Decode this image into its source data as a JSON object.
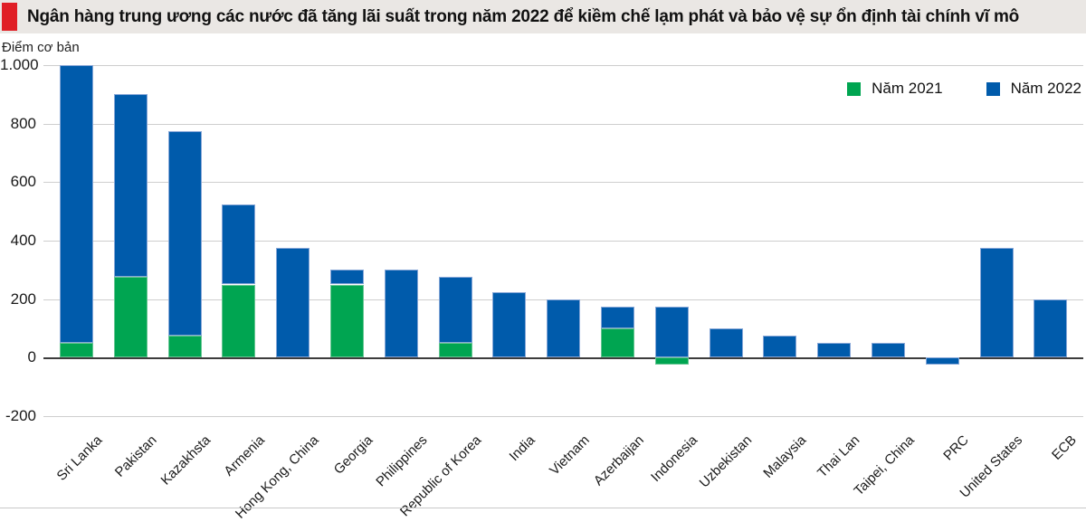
{
  "title": "Ngân hàng trung ương các nước đã tăng lãi suất trong năm 2022 để kiềm chế lạm phát và bảo vệ sự ổn định tài chính vĩ mô",
  "y_axis_title": "Điểm cơ bản",
  "legend": {
    "item1": "Năm 2021",
    "item2": "Năm 2022"
  },
  "colors": {
    "green_2021": "#00a551",
    "blue_2022": "#005bab",
    "title_accent_red": "#e01e25",
    "title_band_bg": "#eae7e4",
    "gridline": "#cecece",
    "zero_line": "#3c3c3c"
  },
  "chart_data": {
    "type": "bar",
    "stacked": true,
    "title": "Ngân hàng trung ương các nước đã tăng lãi suất trong năm 2022 để kiềm chế lạm phát và bảo vệ sự ổn định tài chính vĩ mô",
    "ylabel": "Điểm cơ bản",
    "unit": "basis points",
    "ylim": [
      -200,
      1000
    ],
    "grid": true,
    "legend_position": "top-right",
    "yticks": [
      {
        "value": 1000,
        "label": "1.000"
      },
      {
        "value": 800,
        "label": "800"
      },
      {
        "value": 600,
        "label": "600"
      },
      {
        "value": 400,
        "label": "400"
      },
      {
        "value": 200,
        "label": "200"
      },
      {
        "value": 0,
        "label": "0"
      },
      {
        "value": -200,
        "label": "-200"
      }
    ],
    "categories": [
      "Sri Lanka",
      "Pakistan",
      "Kazakhsta",
      "Armenia",
      "Hong Kong, China",
      "Georgia",
      "Philippines",
      "Republic of Korea",
      "India",
      "Vietnam",
      "Azerbaijan",
      "Indonesia",
      "Uzbekistan",
      "Malaysia",
      "Thai Lan",
      "Taipei, China",
      "PRC",
      "United States",
      "ECB"
    ],
    "series": [
      {
        "name": "Năm 2021",
        "color": "#00a551",
        "values": [
          50,
          275,
          75,
          250,
          0,
          250,
          0,
          50,
          0,
          0,
          100,
          -25,
          0,
          0,
          0,
          0,
          0,
          0,
          0
        ]
      },
      {
        "name": "Năm 2022",
        "color": "#005bab",
        "values": [
          950,
          625,
          700,
          275,
          375,
          50,
          300,
          225,
          225,
          200,
          75,
          200,
          100,
          75,
          50,
          50,
          -25,
          375,
          200
        ]
      }
    ]
  }
}
